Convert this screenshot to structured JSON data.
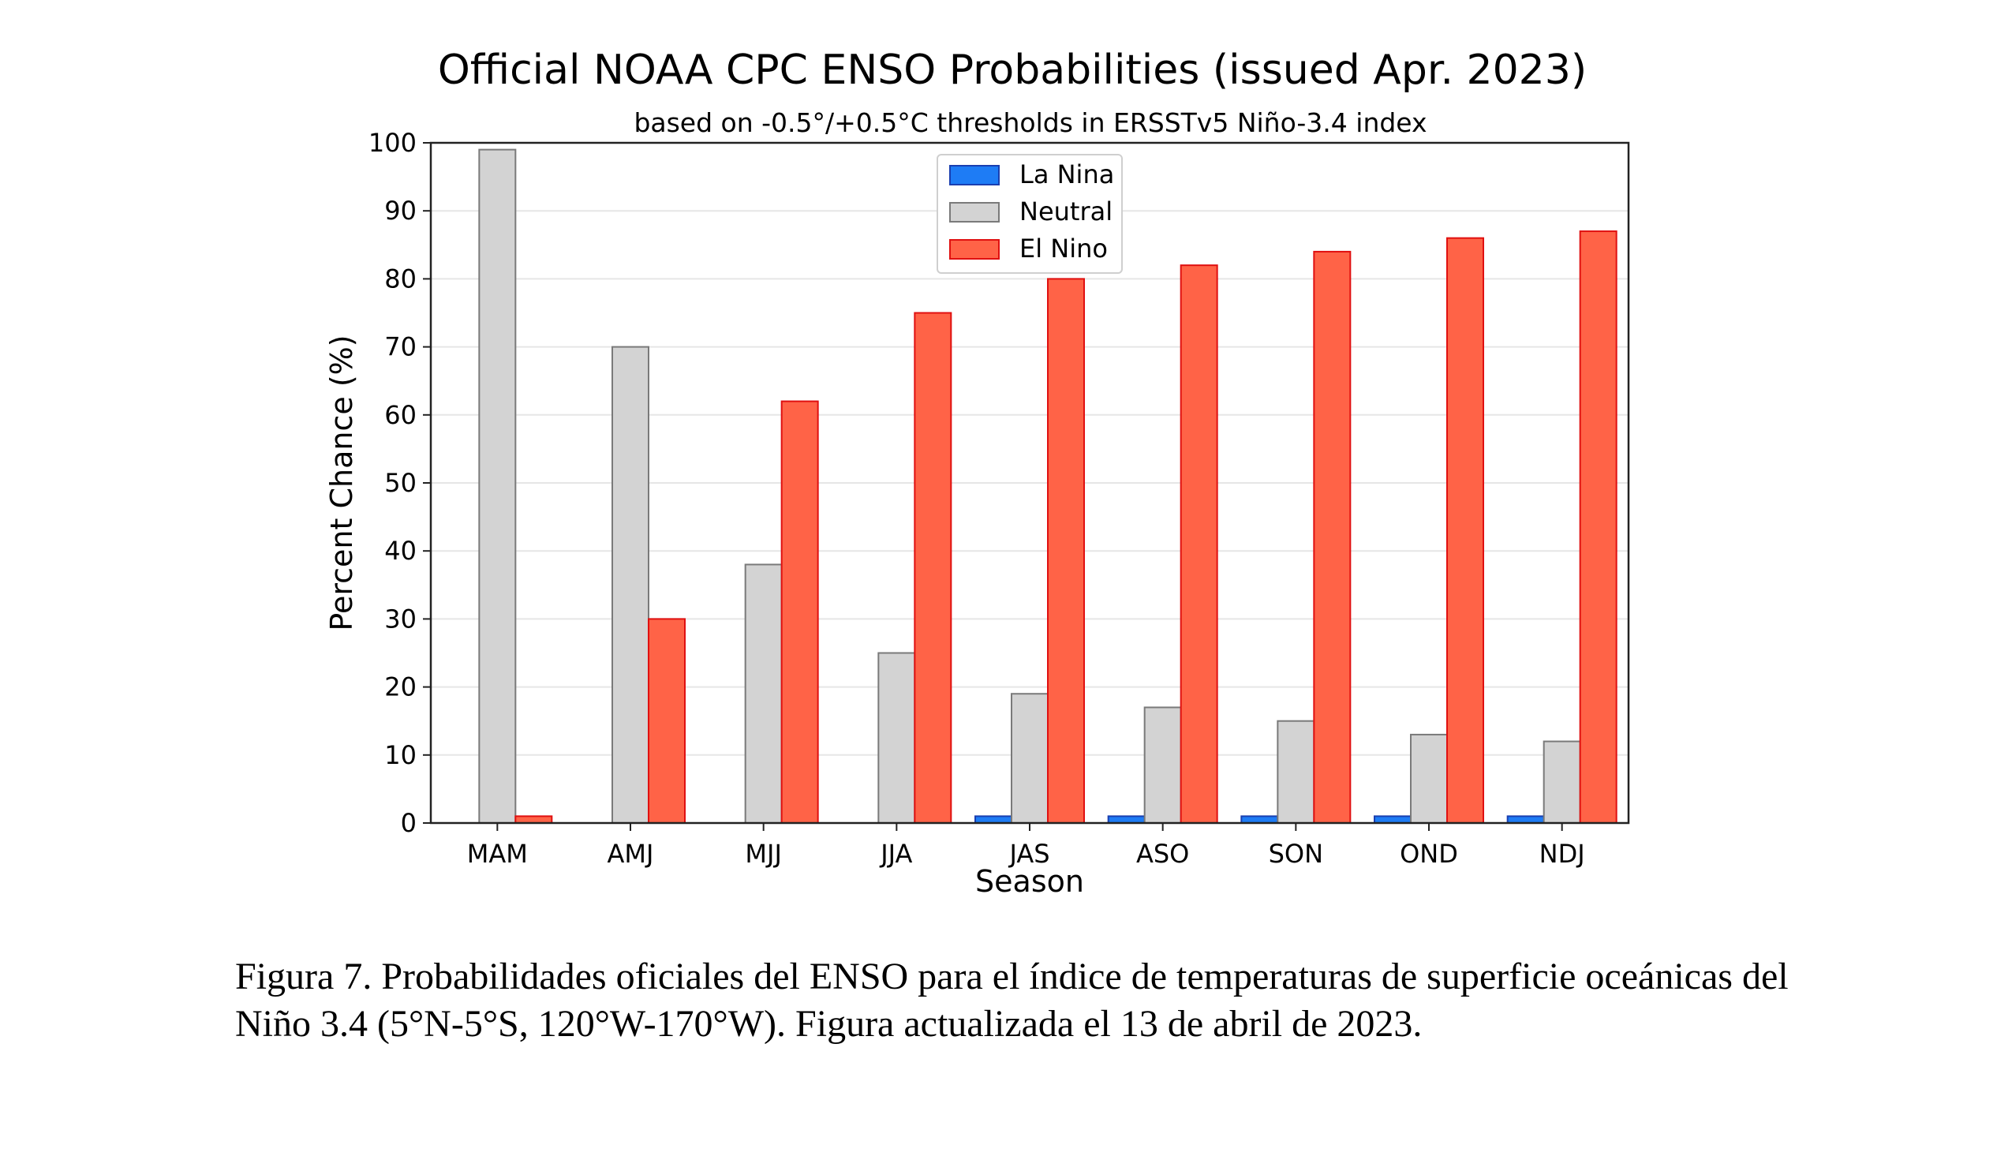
{
  "chart_data": {
    "type": "bar",
    "title": "Official NOAA CPC ENSO Probabilities (issued Apr. 2023)",
    "subtitle": "based on -0.5°/+0.5°C thresholds in ERSSTv5 Niño-3.4 index",
    "xlabel": "Season",
    "ylabel": "Percent Chance (%)",
    "ylim": [
      0,
      100
    ],
    "yticks": [
      0,
      10,
      20,
      30,
      40,
      50,
      60,
      70,
      80,
      90,
      100
    ],
    "grid": true,
    "legend_position": "top-center",
    "categories": [
      "MAM",
      "AMJ",
      "MJJ",
      "JJA",
      "JAS",
      "ASO",
      "SON",
      "OND",
      "NDJ"
    ],
    "series": [
      {
        "name": "La Nina",
        "color": "#1e7cf5",
        "edge": "#1a3fb0",
        "values": [
          0,
          0,
          0,
          0,
          1,
          1,
          1,
          1,
          1
        ]
      },
      {
        "name": "Neutral",
        "color": "#d3d3d3",
        "edge": "#7a7a7a",
        "values": [
          99,
          70,
          38,
          25,
          19,
          17,
          15,
          13,
          12
        ]
      },
      {
        "name": "El Nino",
        "color": "#ff6347",
        "edge": "#e01010",
        "values": [
          1,
          30,
          62,
          75,
          80,
          82,
          84,
          86,
          87
        ]
      }
    ]
  },
  "caption": {
    "line1": "Figura 7. Probabilidades oficiales del ENSO para el índice de temperaturas de superficie oceánicas del",
    "line2": "Niño 3.4 (5°N-5°S, 120°W-170°W). Figura actualizada el 13 de abril de 2023."
  }
}
